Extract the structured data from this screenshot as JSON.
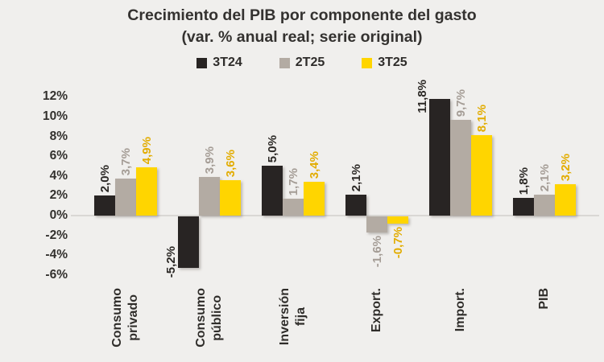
{
  "title": "Crecimiento del PIB por componente del gasto",
  "subtitle": "(var. % anual real; serie original)",
  "legend": [
    {
      "label": "3T24",
      "color": "#282423"
    },
    {
      "label": "2T25",
      "color": "#b3aba3"
    },
    {
      "label": "3T25",
      "color": "#ffd500"
    }
  ],
  "colors": {
    "background": "#f0efed",
    "title_text": "#343230",
    "axis_line": "#d9d7d4"
  },
  "chart_data": {
    "type": "bar",
    "title": "Crecimiento del PIB por componente del gasto",
    "subtitle": "(var. % anual real; serie original)",
    "categories": [
      "Consumo privado",
      "Consumo público",
      "Inversión fija",
      "Export.",
      "Import.",
      "PIB"
    ],
    "category_lines": [
      [
        "Consumo",
        "privado"
      ],
      [
        "Consumo",
        "público"
      ],
      [
        "Inversión",
        "fija"
      ],
      [
        "Export."
      ],
      [
        "Import."
      ],
      [
        "PIB"
      ]
    ],
    "series": [
      {
        "name": "3T24",
        "color": "#282423",
        "label_color": "#2b2825",
        "values": [
          2.0,
          -5.2,
          5.0,
          2.1,
          11.8,
          1.8
        ],
        "labels": [
          "2,0%",
          "-5,2%",
          "5,0%",
          "2,1%",
          "11,8%",
          "1,8%"
        ]
      },
      {
        "name": "2T25",
        "color": "#b3aba3",
        "label_color": "#a49c95",
        "values": [
          3.7,
          3.9,
          1.7,
          -1.6,
          9.7,
          2.1
        ],
        "labels": [
          "3,7%",
          "3,9%",
          "1,7%",
          "-1,6%",
          "9,7%",
          "2,1%"
        ]
      },
      {
        "name": "3T25",
        "color": "#ffd500",
        "label_color": "#e2ac00",
        "values": [
          4.9,
          3.6,
          3.4,
          -0.7,
          8.1,
          3.2
        ],
        "labels": [
          "4,9%",
          "3,6%",
          "3,4%",
          "-0,7%",
          "8,1%",
          "3,2%"
        ]
      }
    ],
    "y_axis": {
      "min": -6,
      "max": 12,
      "step": 2,
      "suffix": "%"
    },
    "grid": false,
    "legend_position": "top",
    "value_labels": "outside-end, rotated 90°, colored per series"
  }
}
